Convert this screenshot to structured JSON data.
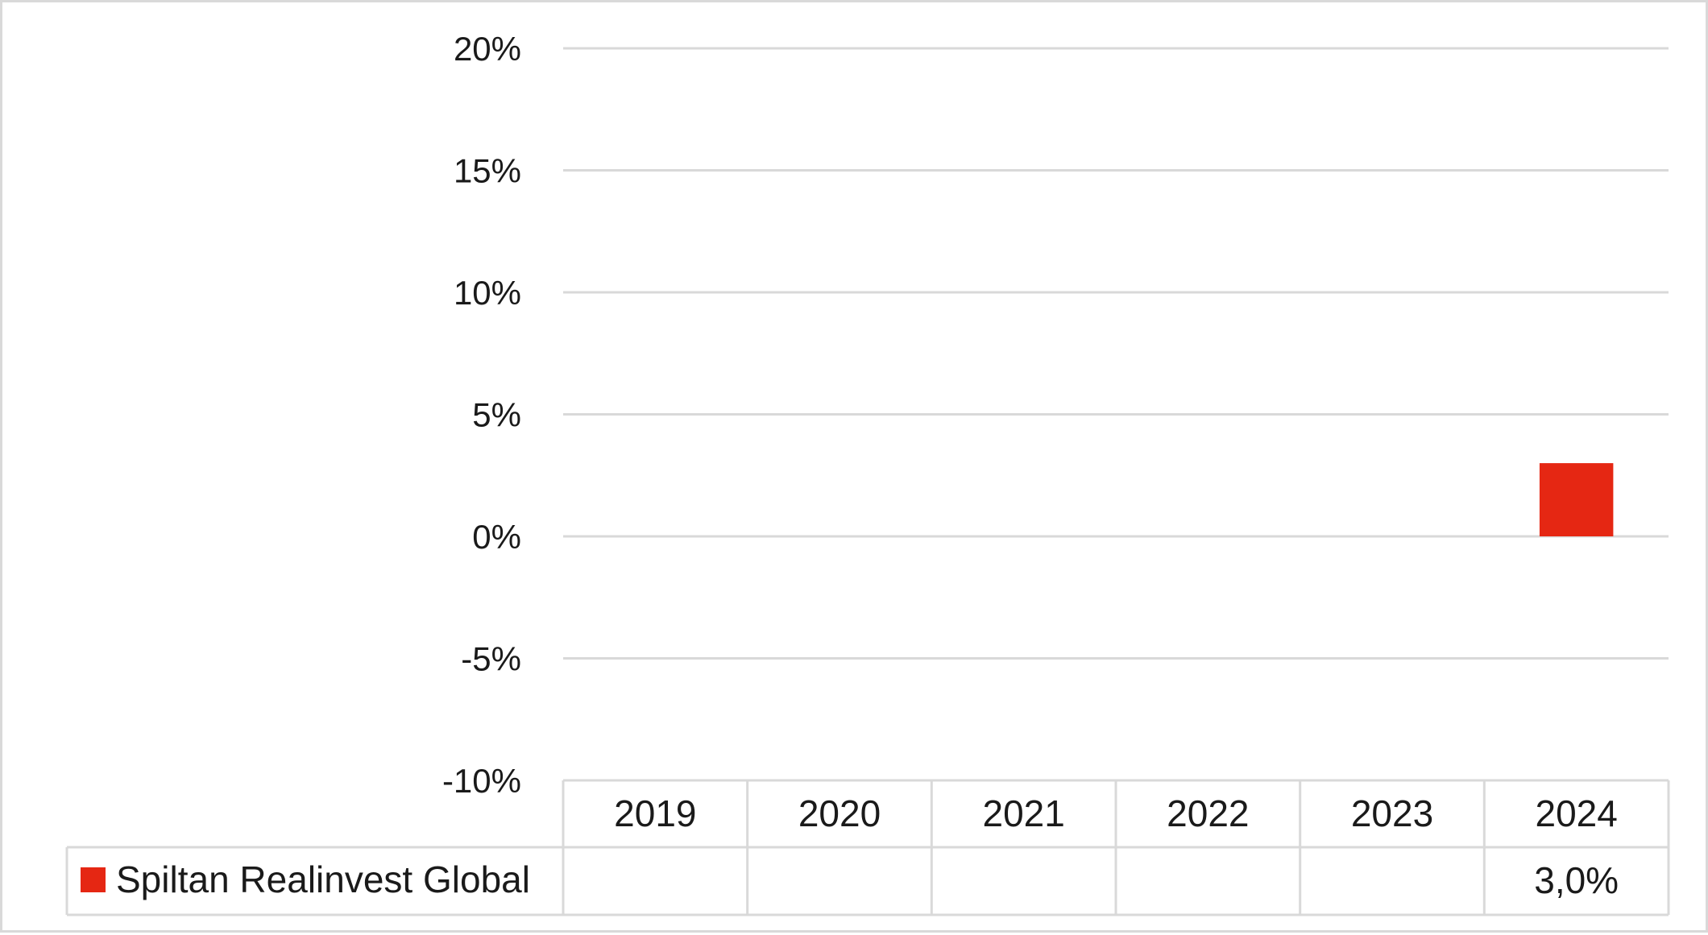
{
  "chart_data": {
    "type": "bar",
    "categories": [
      "2019",
      "2020",
      "2021",
      "2022",
      "2023",
      "2024"
    ],
    "series": [
      {
        "name": "Spiltan Realinvest Global",
        "values": [
          null,
          null,
          null,
          null,
          null,
          3.0
        ],
        "color": "#e52713"
      }
    ],
    "ylim": [
      -10,
      20
    ],
    "yticks": [
      20,
      15,
      10,
      5,
      0,
      -5,
      -10
    ],
    "ytick_labels": [
      "20%",
      "15%",
      "10%",
      "5%",
      "0%",
      "-5%",
      "-10%"
    ],
    "data_table": {
      "legend_label": "Spiltan Realinvest Global",
      "cells": [
        "",
        "",
        "",
        "",
        "",
        "3,0%"
      ]
    },
    "grid": true,
    "title": "",
    "xlabel": "",
    "ylabel": ""
  },
  "colors": {
    "grid": "#d9d9d9",
    "bar": "#e52713",
    "text": "#1a1a1a"
  }
}
